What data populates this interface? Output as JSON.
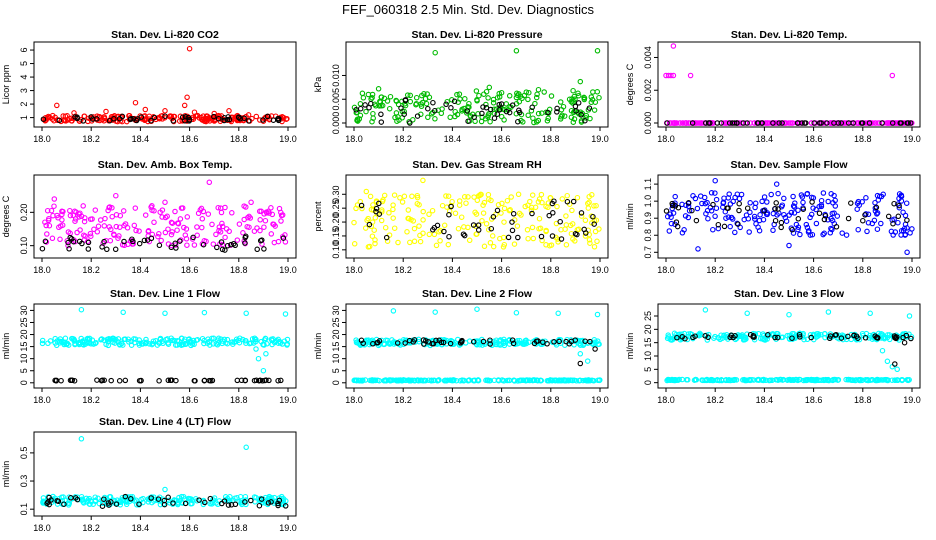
{
  "page_title": "FEF_060318  2.5 Min. Std. Dev. Diagnostics",
  "chart_data": [
    {
      "type": "scatter",
      "title": "Stan. Dev. Li-820 CO2",
      "ylabel": "Licor ppm",
      "xlim": [
        18.0,
        19.0
      ],
      "ylim": [
        0.6,
        6.3
      ],
      "xticks": [
        "18.0",
        "18.2",
        "18.4",
        "18.6",
        "18.8",
        "19.0"
      ],
      "yticks": [
        "1",
        "2",
        "3",
        "4",
        "5",
        "6"
      ],
      "series": [
        {
          "color": "#ff0000",
          "band": [
            0.7,
            1.15
          ],
          "points": [
            [
              18.06,
              1.9
            ],
            [
              18.13,
              1.35
            ],
            [
              18.26,
              1.45
            ],
            [
              18.38,
              2.1
            ],
            [
              18.42,
              1.6
            ],
            [
              18.5,
              1.5
            ],
            [
              18.58,
              1.9
            ],
            [
              18.6,
              6.1
            ],
            [
              18.59,
              2.5
            ],
            [
              18.62,
              1.4
            ],
            [
              18.7,
              1.3
            ],
            [
              18.76,
              1.5
            ],
            [
              18.84,
              1.2
            ],
            [
              18.95,
              1.1
            ]
          ]
        },
        {
          "color": "#000000",
          "band": [
            0.75,
            1.1
          ],
          "points": [
            [
              18.2,
              1.05
            ],
            [
              18.5,
              1.1
            ],
            [
              18.8,
              1.0
            ]
          ]
        }
      ]
    },
    {
      "type": "scatter",
      "title": "Stan. Dev. Li-820 Pressure",
      "ylabel": "kPa",
      "xlim": [
        18.0,
        19.0
      ],
      "ylim": [
        0.0,
        0.0162
      ],
      "xticks": [
        "18.0",
        "18.2",
        "18.4",
        "18.6",
        "18.8",
        "19.0"
      ],
      "yticks": [
        "0.000",
        "0.005",
        "0.010"
      ],
      "series": [
        {
          "color": "#00bb00",
          "band": [
            0.0001,
            0.0068
          ],
          "points": [
            [
              18.33,
              0.0148
            ],
            [
              18.66,
              0.0152
            ],
            [
              18.92,
              0.0087
            ],
            [
              18.99,
              0.0152
            ],
            [
              18.55,
              0.0075
            ],
            [
              18.75,
              0.007
            ],
            [
              18.1,
              0.0072
            ]
          ]
        },
        {
          "color": "#000000",
          "band": [
            0.0,
            0.005
          ],
          "points": [
            [
              18.3,
              0.003
            ],
            [
              18.6,
              0.004
            ],
            [
              18.9,
              0.0035
            ]
          ]
        }
      ]
    },
    {
      "type": "scatter",
      "title": "Stan. Dev. Li-820 Temp.",
      "ylabel": "degrees C",
      "xlim": [
        18.0,
        19.0
      ],
      "ylim": [
        0.0,
        0.0047
      ],
      "xticks": [
        "18.0",
        "18.2",
        "18.4",
        "18.6",
        "18.8",
        "19.0"
      ],
      "yticks": [
        "0.000",
        "0.002",
        "0.004"
      ],
      "series": [
        {
          "color": "#ff00ff",
          "band": [
            0.0,
            0.0
          ],
          "points": [
            [
              18.0,
              0.0029
            ],
            [
              18.01,
              0.0029
            ],
            [
              18.02,
              0.0029
            ],
            [
              18.03,
              0.0029
            ],
            [
              18.03,
              0.0047
            ],
            [
              18.1,
              0.0029
            ],
            [
              18.92,
              0.0029
            ]
          ]
        },
        {
          "color": "#000000",
          "band": [
            0.0,
            0.0
          ],
          "points": []
        }
      ]
    },
    {
      "type": "scatter",
      "title": "Stan. Dev. Amb. Box Temp.",
      "ylabel": "degrees C",
      "xlim": [
        18.0,
        19.0
      ],
      "ylim": [
        0.075,
        0.3
      ],
      "xticks": [
        "18.0",
        "18.2",
        "18.4",
        "18.6",
        "18.8",
        "19.0"
      ],
      "yticks": [
        "0.10",
        "0.20"
      ],
      "series": [
        {
          "color": "#ff00ff",
          "band": [
            0.1,
            0.22
          ],
          "points": [
            [
              18.68,
              0.29
            ],
            [
              18.05,
              0.24
            ],
            [
              18.3,
              0.25
            ],
            [
              18.5,
              0.23
            ],
            [
              18.85,
              0.23
            ]
          ]
        },
        {
          "color": "#000000",
          "band": [
            0.085,
            0.13
          ],
          "points": []
        }
      ]
    },
    {
      "type": "scatter",
      "title": "Stan. Dev. Gas Stream RH",
      "ylabel": "percent",
      "xlim": [
        18.0,
        19.0
      ],
      "ylim": [
        0.085,
        0.355
      ],
      "xticks": [
        "18.0",
        "18.2",
        "18.4",
        "18.6",
        "18.8",
        "19.0"
      ],
      "yticks": [
        "0.10",
        "0.15",
        "0.20",
        "0.25",
        "0.30"
      ],
      "series": [
        {
          "color": "#ffff00",
          "band": [
            0.11,
            0.3
          ],
          "points": [
            [
              18.28,
              0.35
            ],
            [
              18.05,
              0.31
            ]
          ]
        },
        {
          "color": "#000000",
          "band": [
            0.13,
            0.29
          ],
          "points": []
        }
      ]
    },
    {
      "type": "scatter",
      "title": "Stan. Dev. Sample Flow",
      "ylabel": "ml/min",
      "xlim": [
        18.0,
        19.0
      ],
      "ylim": [
        0.69,
        1.13
      ],
      "xticks": [
        "18.0",
        "18.2",
        "18.4",
        "18.6",
        "18.8",
        "19.0"
      ],
      "yticks": [
        "0.7",
        "0.8",
        "0.9",
        "1.0",
        "1.1"
      ],
      "series": [
        {
          "color": "#0000ff",
          "band": [
            0.8,
            1.05
          ],
          "points": [
            [
              18.2,
              1.12
            ],
            [
              18.13,
              0.72
            ],
            [
              18.5,
              0.74
            ],
            [
              18.98,
              0.7
            ],
            [
              18.45,
              1.1
            ]
          ]
        },
        {
          "color": "#000000",
          "band": [
            0.83,
            1.0
          ],
          "points": []
        }
      ]
    },
    {
      "type": "scatter",
      "title": "Stan. Dev. Line 1 Flow",
      "ylabel": "ml/min",
      "xlim": [
        18.0,
        19.0
      ],
      "ylim": [
        -0.5,
        31
      ],
      "xticks": [
        "18.0",
        "18.2",
        "18.4",
        "18.6",
        "18.8",
        "19.0"
      ],
      "yticks": [
        "0",
        "5",
        "10",
        "15",
        "20",
        "25",
        "30"
      ],
      "series": [
        {
          "color": "#00ffff",
          "band": [
            15.5,
            18.5
          ],
          "points": [
            [
              18.16,
              30.3
            ],
            [
              18.33,
              29.2
            ],
            [
              18.5,
              28.8
            ],
            [
              18.66,
              29.1
            ],
            [
              18.83,
              28.8
            ],
            [
              18.99,
              28.5
            ],
            [
              18.88,
              10
            ],
            [
              18.9,
              5
            ],
            [
              18.87,
              14
            ],
            [
              18.91,
              12
            ]
          ]
        },
        {
          "color": "#000000",
          "band": [
            0.8,
            1.1
          ],
          "points": []
        }
      ]
    },
    {
      "type": "scatter",
      "title": "Stan. Dev. Line 2 Flow",
      "ylabel": "ml/min",
      "xlim": [
        18.0,
        19.0
      ],
      "ylim": [
        -0.5,
        31
      ],
      "xticks": [
        "18.0",
        "18.2",
        "18.4",
        "18.6",
        "18.8",
        "19.0"
      ],
      "yticks": [
        "0",
        "5",
        "10",
        "15",
        "20",
        "25",
        "30"
      ],
      "series": [
        {
          "color": "#00ffff",
          "band": [
            15.5,
            18.0
          ],
          "points": [
            [
              18.16,
              29.8
            ],
            [
              18.33,
              29.3
            ],
            [
              18.5,
              30.5
            ],
            [
              18.66,
              29.0
            ],
            [
              18.83,
              28.8
            ],
            [
              18.99,
              28.3
            ],
            [
              18.92,
              12
            ],
            [
              18.95,
              9
            ]
          ]
        },
        {
          "color": "#00ffff",
          "band": [
            0.8,
            1.2
          ],
          "points": []
        },
        {
          "color": "#000000",
          "band": [
            16.0,
            17.8
          ],
          "points": [
            [
              18.92,
              8
            ],
            [
              18.98,
              14
            ]
          ]
        }
      ]
    },
    {
      "type": "scatter",
      "title": "Stan. Dev. Line 3 Flow",
      "ylabel": "ml/min",
      "xlim": [
        18.0,
        19.0
      ],
      "ylim": [
        -0.5,
        28
      ],
      "xticks": [
        "18.0",
        "18.2",
        "18.4",
        "18.6",
        "18.8",
        "19.0"
      ],
      "yticks": [
        "0",
        "5",
        "10",
        "15",
        "20",
        "25"
      ],
      "series": [
        {
          "color": "#00ffff",
          "band": [
            16.0,
            18.5
          ],
          "points": [
            [
              18.16,
              27.3
            ],
            [
              18.33,
              26.0
            ],
            [
              18.5,
              25.5
            ],
            [
              18.66,
              26.5
            ],
            [
              18.83,
              26.0
            ],
            [
              18.99,
              25.0
            ],
            [
              18.88,
              12
            ],
            [
              18.9,
              8
            ],
            [
              18.92,
              6
            ],
            [
              18.94,
              5
            ]
          ]
        },
        {
          "color": "#00ffff",
          "band": [
            0.8,
            1.2
          ],
          "points": []
        },
        {
          "color": "#000000",
          "band": [
            16.5,
            18.0
          ],
          "points": [
            [
              18.93,
              7
            ],
            [
              18.97,
              15
            ]
          ]
        }
      ]
    },
    {
      "type": "scatter",
      "title": "Stan. Dev. Line 4 (LT) Flow",
      "ylabel": "ml/min",
      "xlim": [
        18.0,
        19.0
      ],
      "ylim": [
        0.08,
        0.62
      ],
      "xticks": [
        "18.0",
        "18.2",
        "18.4",
        "18.6",
        "18.8",
        "19.0"
      ],
      "yticks": [
        "0.1",
        "0.3",
        "0.5"
      ],
      "series": [
        {
          "color": "#00ffff",
          "band": [
            0.13,
            0.19
          ],
          "points": [
            [
              18.16,
              0.6
            ],
            [
              18.83,
              0.54
            ],
            [
              18.5,
              0.24
            ]
          ]
        },
        {
          "color": "#000000",
          "band": [
            0.12,
            0.19
          ],
          "points": []
        }
      ]
    }
  ]
}
